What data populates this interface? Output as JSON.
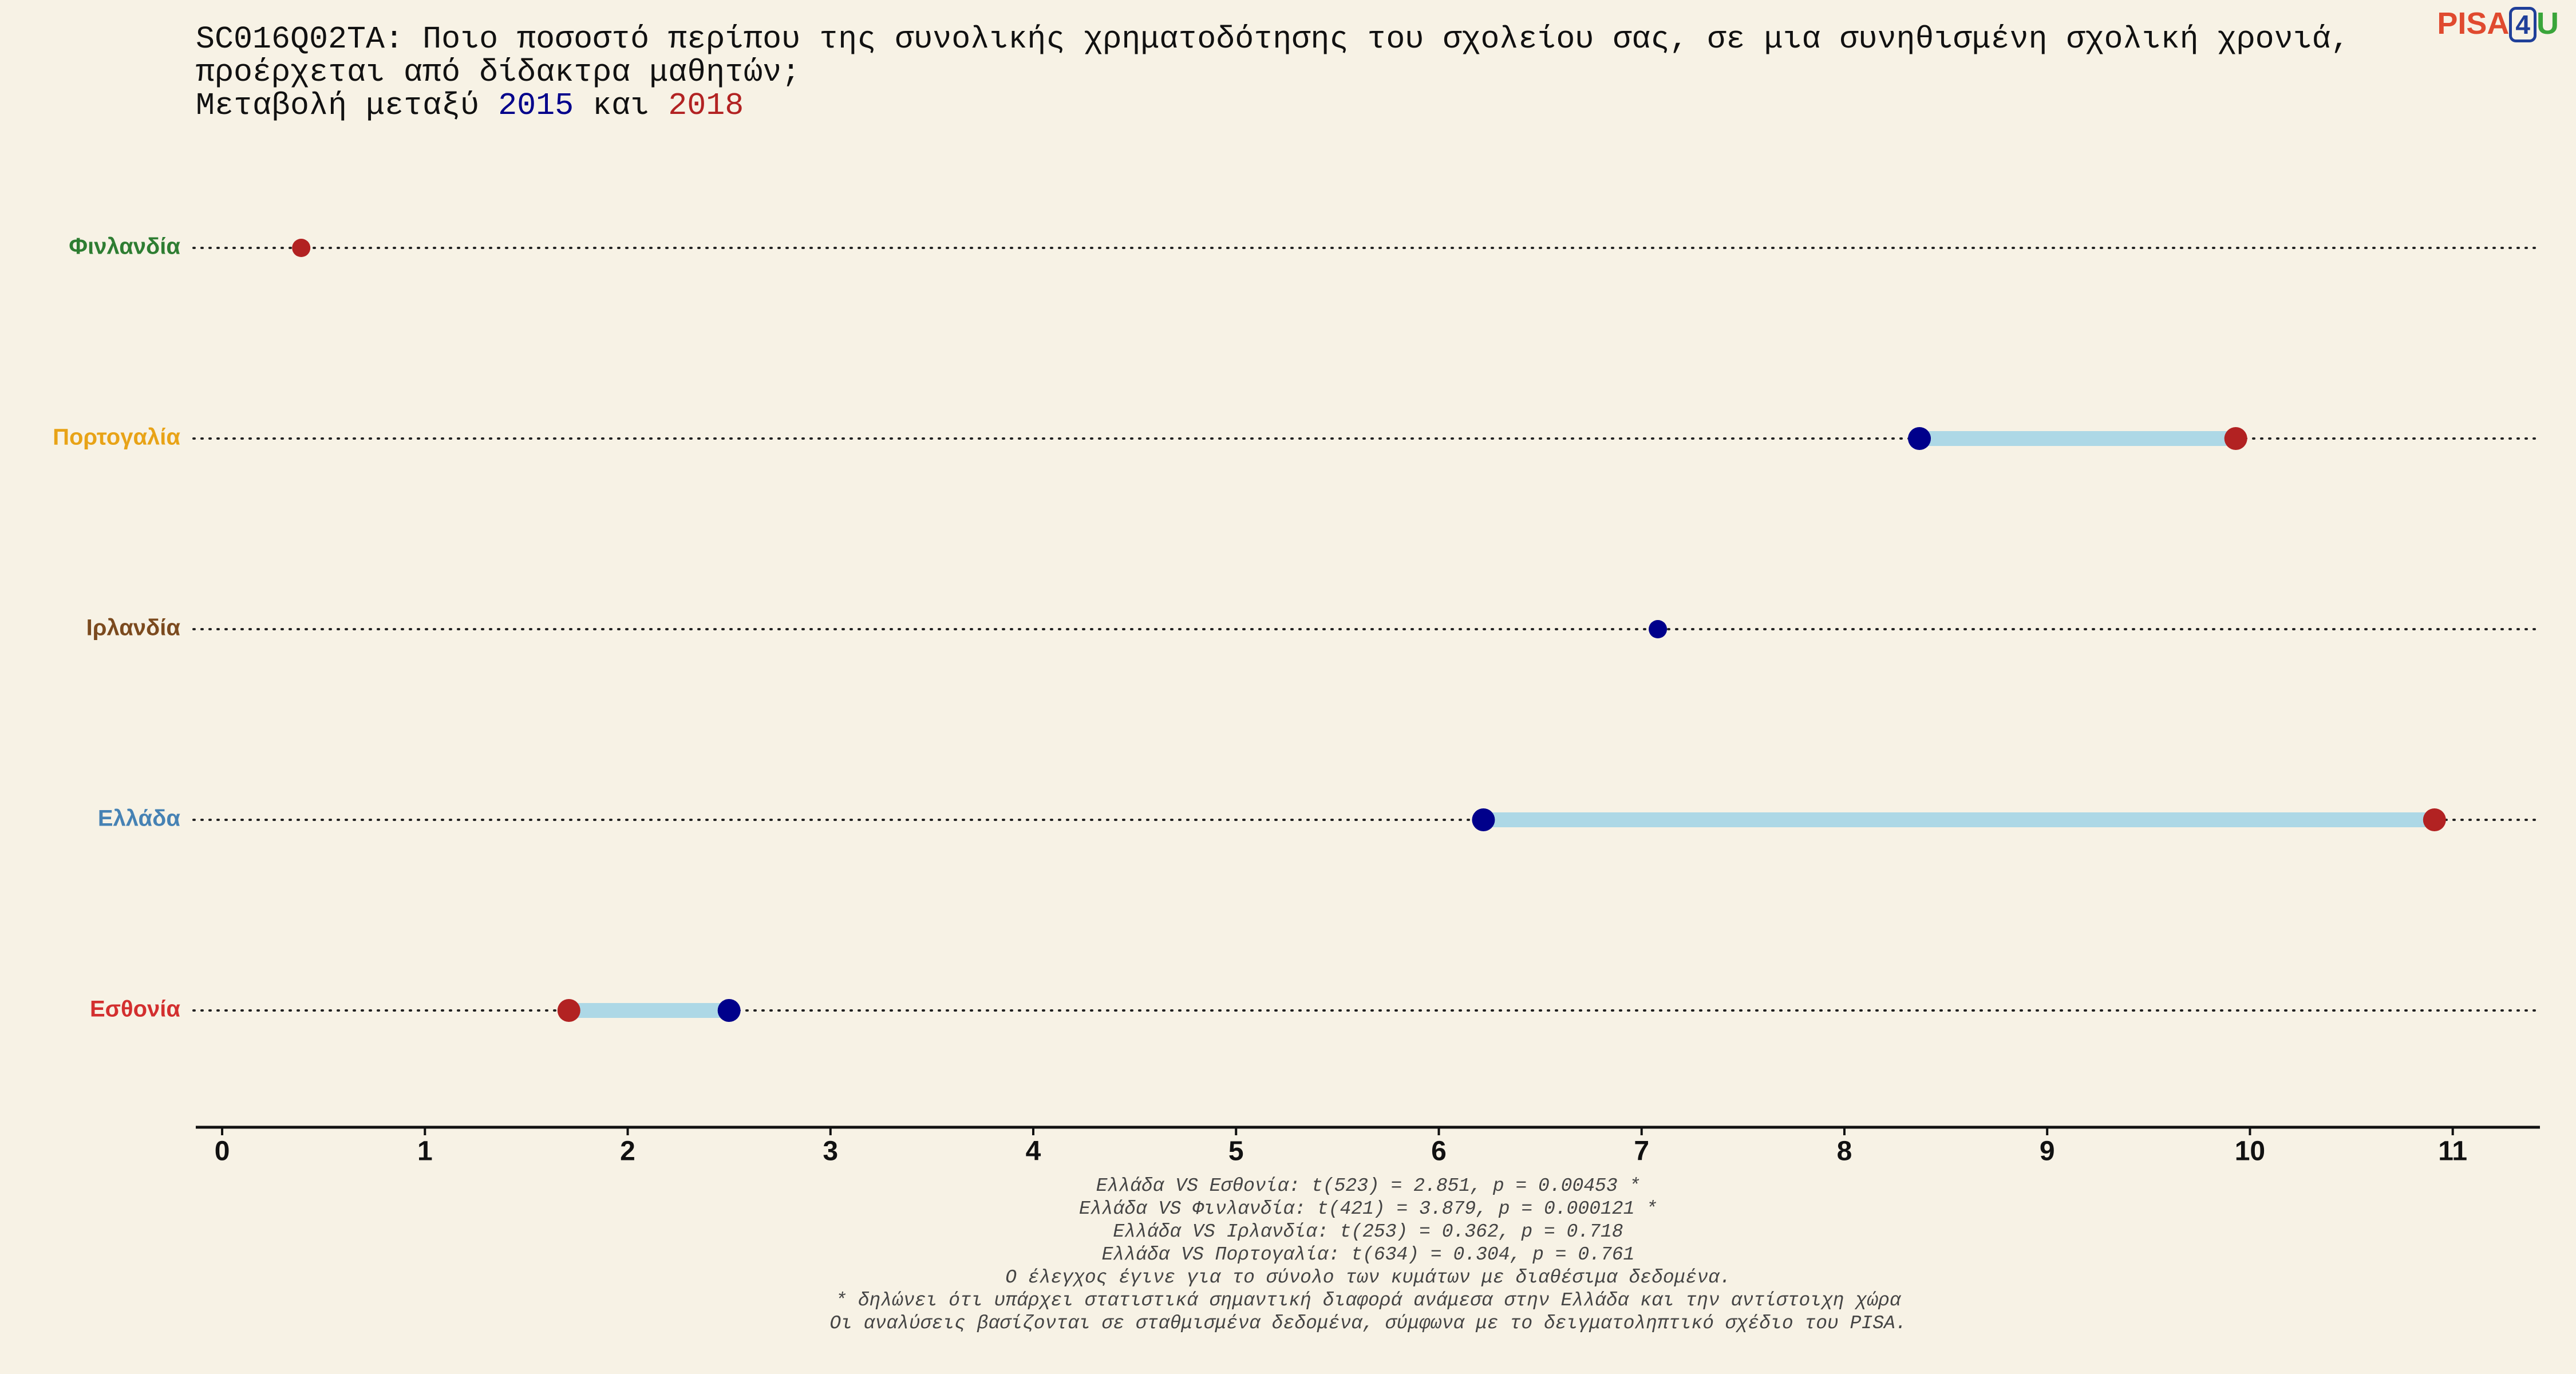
{
  "chart_data": {
    "type": "dumbbell",
    "title": "SC016Q02TA: Ποιο ποσοστό περίπου της συνολικής χρηματοδότησης του σχολείου σας, σε μια συνηθισμένη σχολική χρονιά, προέρχεται από δίδακτρα μαθητών;",
    "subtitle": {
      "before": "Μεταβολή μεταξύ",
      "between": "και"
    },
    "categories": [
      "Φινλανδία",
      "Πορτογαλία",
      "Ιρλανδία",
      "Ελλάδα",
      "Εσθονία"
    ],
    "category_colors": [
      "#2e7d32",
      "#e8a317",
      "#7b4a1e",
      "#4682b4",
      "#d32f2f"
    ],
    "series": [
      {
        "name": "2015",
        "color": "#00008b",
        "values": [
          null,
          8.37,
          7.08,
          6.22,
          2.5
        ]
      },
      {
        "name": "2018",
        "color": "#b22222",
        "values": [
          0.39,
          9.93,
          null,
          10.91,
          1.71
        ]
      }
    ],
    "connector_color": "#add8e6",
    "xlim": [
      -0.13,
      11.43
    ],
    "xticks": [
      0,
      1,
      2,
      3,
      4,
      5,
      6,
      7,
      8,
      9,
      10,
      11
    ],
    "footnotes": [
      "Ελλάδα VS Εσθονία: t(523) = 2.851, p = 0.00453 *",
      "Ελλάδα VS Φινλανδία: t(421) = 3.879, p = 0.000121 *",
      "Ελλάδα VS Ιρλανδία: t(253) = 0.362, p = 0.718",
      "Ελλάδα VS Πορτογαλία: t(634) = 0.304, p = 0.761",
      "Ο έλεγχος έγινε για το σύνολο των κυμάτων με διαθέσιμα δεδομένα.",
      "* δηλώνει ότι υπάρχει στατιστικά σημαντική διαφορά ανάμεσα στην Ελλάδα και την αντίστοιχη χώρα",
      "Οι αναλύσεις βασίζονται σε σταθμισμένα δεδομένα, σύμφωνα με το δειγματοληπτικό σχέδιο του PISA."
    ],
    "logo": {
      "left": "PISA",
      "box": "4",
      "right": "U"
    }
  }
}
